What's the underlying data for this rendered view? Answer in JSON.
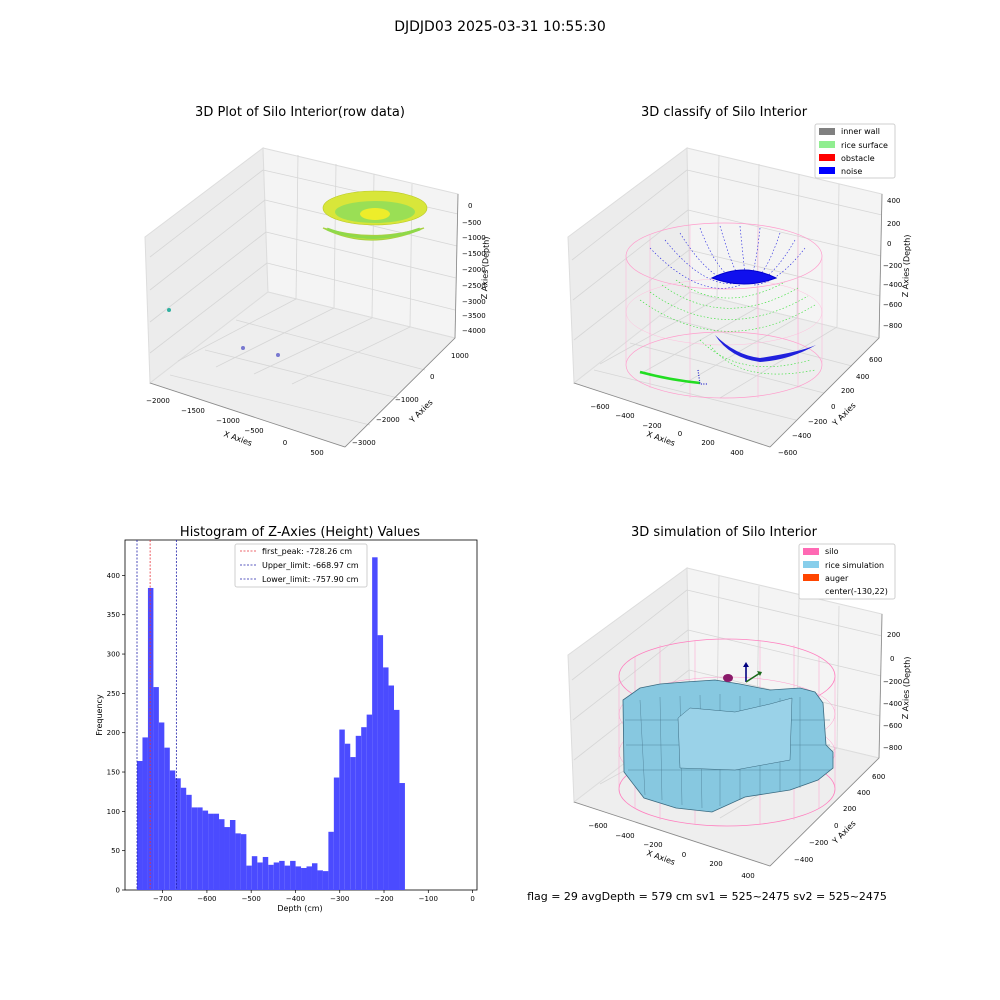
{
  "suptitle": "DJDJD03 2025-03-31 10:55:30",
  "footer": "flag = 29  avgDepth = 579 cm  sv1 = 525~2475  sv2 = 525~2475",
  "colors": {
    "hist_bar": "#4b4bff",
    "first_peak": "#e8323b",
    "limits": "#2222aa",
    "pane": "#f2f2f2",
    "grid": "#d6d6d6",
    "wall": "#ff9ccc",
    "rice_green": "#39e639",
    "noise_blue": "#0a0ae8",
    "sim_fill": "#87c8e0",
    "sim_edge": "#3a6a80",
    "surface_yellow": "#e3e32a",
    "surface_green": "#8fd94a"
  },
  "panels": {
    "p1": {
      "title": "3D Plot of Silo Interior(row data)",
      "xlabel": "X Axies",
      "ylabel": "Y Axies",
      "zlabel": "Z Axies (Depth)",
      "xticks": [
        "−2000",
        "−1500",
        "−1000",
        "−500",
        "0",
        "500"
      ],
      "yticks": [
        "1000",
        "0",
        "−1000",
        "−2000",
        "−3000"
      ],
      "zticks": [
        "0",
        "−500",
        "−1000",
        "−1500",
        "−2000",
        "−2500",
        "−3000",
        "−3500",
        "−4000"
      ]
    },
    "p2": {
      "title": "3D classify of Silo Interior",
      "xlabel": "X Axies",
      "ylabel": "Y Axies",
      "zlabel": "Z Axies (Depth)",
      "xticks": [
        "−600",
        "−400",
        "−200",
        "0",
        "200",
        "400"
      ],
      "yticks": [
        "600",
        "400",
        "200",
        "0",
        "−200",
        "−400",
        "−600"
      ],
      "zticks": [
        "400",
        "200",
        "0",
        "−200",
        "−400",
        "−600",
        "−800"
      ],
      "legend": [
        {
          "label": "inner wall",
          "color": "#808080"
        },
        {
          "label": "rice surface",
          "color": "#90ee90"
        },
        {
          "label": "obstacle",
          "color": "#ff0000"
        },
        {
          "label": "noise",
          "color": "#0000ff"
        }
      ]
    },
    "p4": {
      "title": "3D simulation of Silo Interior",
      "xlabel": "X Axies",
      "ylabel": "Y Axies",
      "zlabel": "Z Axies (Depth)",
      "xticks": [
        "−600",
        "−400",
        "−200",
        "0",
        "200",
        "400"
      ],
      "yticks": [
        "600",
        "400",
        "200",
        "0",
        "−200",
        "−400"
      ],
      "zticks": [
        "200",
        "0",
        "−200",
        "−400",
        "−600",
        "−800"
      ],
      "legend": [
        {
          "label": "silo",
          "color": "#ff69b4"
        },
        {
          "label": "rice simulation",
          "color": "#87ceeb"
        },
        {
          "label": "auger",
          "color": "#ff4500"
        },
        {
          "label": "center(-130,22)",
          "color": ""
        }
      ]
    }
  },
  "chart_data": {
    "type": "bar",
    "title": "Histogram of Z-Axies (Height) Values",
    "xlabel": "Depth (cm)",
    "ylabel": "Frequency",
    "xlim": [
      -785,
      10
    ],
    "ylim": [
      0,
      445
    ],
    "xticks": [
      -700,
      -600,
      -500,
      -400,
      -300,
      -200,
      -100,
      0
    ],
    "xtick_labels": [
      "−700",
      "−600",
      "−500",
      "−400",
      "−300",
      "−200",
      "−100",
      "0"
    ],
    "yticks": [
      0,
      50,
      100,
      150,
      200,
      250,
      300,
      350,
      400
    ],
    "bin_start": -757.9,
    "bin_width": 12.35,
    "values": [
      164,
      194,
      384,
      258,
      213,
      181,
      152,
      142,
      130,
      121,
      105,
      105,
      101,
      97,
      97,
      90,
      80,
      89,
      72,
      71,
      31,
      43,
      35,
      42,
      32,
      35,
      37,
      31,
      37,
      30,
      28,
      30,
      34,
      25,
      24,
      74,
      143,
      204,
      186,
      169,
      196,
      207,
      223,
      423,
      324,
      283,
      260,
      229,
      136
    ],
    "lines": [
      {
        "label": "first_peak: -728.26 cm",
        "value": -728.26,
        "color": "#e8323b"
      },
      {
        "label": "Upper_limit: -668.97 cm",
        "value": -668.97,
        "color": "#2222aa"
      },
      {
        "label": "Lower_limit: -757.90 cm",
        "value": -757.9,
        "color": "#2222aa"
      }
    ]
  }
}
